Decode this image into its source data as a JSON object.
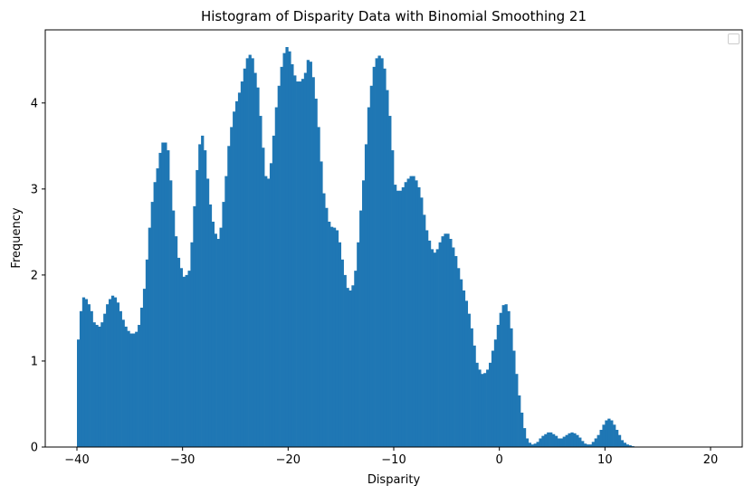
{
  "chart_data": {
    "type": "bar",
    "title": "Histogram of Disparity Data with Binomial Smoothing 21",
    "xlabel": "Disparity",
    "ylabel": "Frequency",
    "xlim": [
      -43,
      23
    ],
    "ylim": [
      0,
      4.85
    ],
    "xticks": [
      -40,
      -30,
      -20,
      -10,
      0,
      10,
      20
    ],
    "yticks": [
      0,
      1,
      2,
      3,
      4
    ],
    "grid": false,
    "legend": "top-right (empty)",
    "bar_color": "#1f77b4",
    "bin_width": 0.25,
    "x_start": -40,
    "values": [
      1.25,
      1.58,
      1.74,
      1.72,
      1.66,
      1.58,
      1.45,
      1.42,
      1.4,
      1.45,
      1.55,
      1.66,
      1.72,
      1.76,
      1.74,
      1.68,
      1.58,
      1.48,
      1.4,
      1.35,
      1.32,
      1.32,
      1.34,
      1.42,
      1.62,
      1.84,
      2.18,
      2.55,
      2.85,
      3.08,
      3.24,
      3.42,
      3.54,
      3.54,
      3.45,
      3.1,
      2.75,
      2.45,
      2.2,
      2.08,
      1.98,
      2.0,
      2.05,
      2.38,
      2.8,
      3.22,
      3.52,
      3.62,
      3.45,
      3.12,
      2.82,
      2.62,
      2.48,
      2.42,
      2.55,
      2.85,
      3.15,
      3.5,
      3.72,
      3.9,
      4.02,
      4.12,
      4.25,
      4.4,
      4.52,
      4.56,
      4.52,
      4.35,
      4.18,
      3.85,
      3.48,
      3.15,
      3.12,
      3.3,
      3.62,
      3.95,
      4.2,
      4.42,
      4.58,
      4.65,
      4.6,
      4.45,
      4.32,
      4.25,
      4.25,
      4.28,
      4.35,
      4.5,
      4.48,
      4.3,
      4.05,
      3.72,
      3.32,
      2.95,
      2.78,
      2.62,
      2.56,
      2.55,
      2.52,
      2.38,
      2.18,
      2.0,
      1.85,
      1.82,
      1.88,
      2.05,
      2.38,
      2.75,
      3.1,
      3.52,
      3.95,
      4.2,
      4.42,
      4.52,
      4.55,
      4.52,
      4.4,
      4.15,
      3.85,
      3.45,
      3.05,
      2.98,
      2.98,
      3.02,
      3.08,
      3.12,
      3.15,
      3.15,
      3.1,
      3.02,
      2.9,
      2.7,
      2.52,
      2.4,
      2.3,
      2.26,
      2.3,
      2.38,
      2.45,
      2.48,
      2.48,
      2.42,
      2.32,
      2.22,
      2.08,
      1.95,
      1.82,
      1.7,
      1.55,
      1.38,
      1.18,
      0.98,
      0.9,
      0.85,
      0.86,
      0.9,
      0.98,
      1.12,
      1.25,
      1.42,
      1.56,
      1.65,
      1.66,
      1.58,
      1.38,
      1.12,
      0.85,
      0.6,
      0.4,
      0.22,
      0.1,
      0.05,
      0.03,
      0.04,
      0.06,
      0.1,
      0.13,
      0.15,
      0.17,
      0.17,
      0.15,
      0.13,
      0.1,
      0.1,
      0.12,
      0.14,
      0.16,
      0.17,
      0.16,
      0.14,
      0.11,
      0.07,
      0.04,
      0.03,
      0.03,
      0.06,
      0.1,
      0.14,
      0.2,
      0.26,
      0.31,
      0.33,
      0.31,
      0.26,
      0.2,
      0.14,
      0.08,
      0.05,
      0.03,
      0.02,
      0.01
    ]
  }
}
